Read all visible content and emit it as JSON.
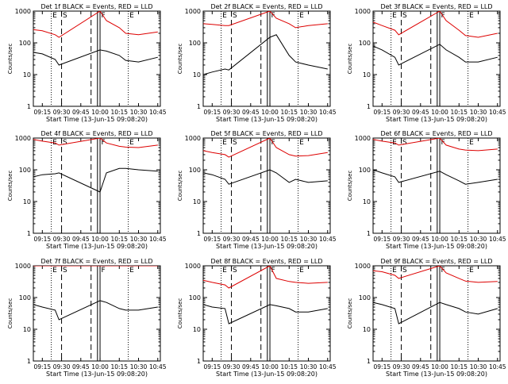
{
  "figure": {
    "ylabel": "Counts/sec",
    "xlabel": "Start Time (13-Jun-15 09:08:20)",
    "legend_title_suffix": "BLACK = Events, RED = LLD",
    "colors": {
      "events": "#000000",
      "lld": "#dd0000"
    },
    "marker_labels": {
      "eclipse_start": "E",
      "saa_start": "S",
      "flare": "F",
      "eclipse_end": "E"
    }
  },
  "chart_data": [
    {
      "type": "line",
      "title": "Det 1f  BLACK = Events, RED = LLD",
      "det": "1f",
      "x_ticks": [
        "09:15",
        "09:30",
        "09:45",
        "10:00",
        "10:15",
        "10:30",
        "10:45"
      ],
      "y_ticks": [
        "1",
        "10",
        "100",
        "1000"
      ],
      "yscale": "log",
      "ylim": [
        1,
        1000
      ],
      "series": [
        {
          "name": "Events",
          "color": "#000000",
          "x": [
            "09:08",
            "09:15",
            "09:25",
            "09:28",
            "10:00",
            "10:05",
            "10:15",
            "10:20",
            "10:30",
            "10:45"
          ],
          "y": [
            50,
            45,
            30,
            20,
            60,
            55,
            40,
            28,
            25,
            35
          ]
        },
        {
          "name": "LLD",
          "color": "#dd0000",
          "x": [
            "09:08",
            "09:15",
            "09:25",
            "09:28",
            "10:00",
            "10:05",
            "10:15",
            "10:20",
            "10:30",
            "10:45"
          ],
          "y": [
            260,
            240,
            180,
            150,
            1000,
            500,
            300,
            200,
            180,
            220
          ]
        }
      ]
    },
    {
      "type": "line",
      "title": "Det 2f  BLACK = Events, RED = LLD",
      "det": "2f",
      "x_ticks": [
        "09:15",
        "09:30",
        "09:45",
        "10:00",
        "10:15",
        "10:30",
        "10:45"
      ],
      "y_ticks": [
        "1",
        "10",
        "100",
        "1000"
      ],
      "yscale": "log",
      "ylim": [
        1,
        1000
      ],
      "series": [
        {
          "name": "Events",
          "color": "#000000",
          "x": [
            "09:08",
            "09:15",
            "09:25",
            "09:28",
            "10:00",
            "10:05",
            "10:15",
            "10:20",
            "10:30",
            "10:45"
          ],
          "y": [
            10,
            12,
            15,
            14,
            150,
            180,
            40,
            25,
            20,
            15
          ]
        },
        {
          "name": "LLD",
          "color": "#dd0000",
          "x": [
            "09:08",
            "09:15",
            "09:25",
            "09:28",
            "10:00",
            "10:05",
            "10:15",
            "10:20",
            "10:30",
            "10:45"
          ],
          "y": [
            400,
            380,
            350,
            350,
            1000,
            600,
            400,
            300,
            350,
            400
          ]
        }
      ]
    },
    {
      "type": "line",
      "title": "Det 3f  BLACK = Events, RED = LLD",
      "det": "3f",
      "x_ticks": [
        "09:15",
        "09:30",
        "09:45",
        "10:00",
        "10:15",
        "10:30",
        "10:45"
      ],
      "y_ticks": [
        "1",
        "10",
        "100",
        "1000"
      ],
      "yscale": "log",
      "ylim": [
        1,
        1000
      ],
      "series": [
        {
          "name": "Events",
          "color": "#000000",
          "x": [
            "09:08",
            "09:15",
            "09:25",
            "09:28",
            "10:00",
            "10:05",
            "10:15",
            "10:20",
            "10:30",
            "10:45"
          ],
          "y": [
            80,
            60,
            35,
            20,
            90,
            60,
            35,
            25,
            25,
            35
          ]
        },
        {
          "name": "LLD",
          "color": "#dd0000",
          "x": [
            "09:08",
            "09:15",
            "09:25",
            "09:28",
            "10:00",
            "10:05",
            "10:15",
            "10:20",
            "10:30",
            "10:45"
          ],
          "y": [
            450,
            350,
            250,
            180,
            1000,
            500,
            250,
            170,
            150,
            200
          ]
        }
      ]
    },
    {
      "type": "line",
      "title": "Det 4f  BLACK = Events, RED = LLD",
      "det": "4f",
      "x_ticks": [
        "09:15",
        "09:30",
        "09:45",
        "10:00",
        "10:15",
        "10:30",
        "10:45"
      ],
      "y_ticks": [
        "1",
        "10",
        "100",
        "1000"
      ],
      "yscale": "log",
      "ylim": [
        1,
        1000
      ],
      "series": [
        {
          "name": "Events",
          "color": "#000000",
          "x": [
            "09:08",
            "09:15",
            "09:25",
            "09:28",
            "10:00",
            "10:05",
            "10:15",
            "10:20",
            "10:30",
            "10:45"
          ],
          "y": [
            60,
            70,
            75,
            80,
            20,
            80,
            110,
            110,
            100,
            90
          ]
        },
        {
          "name": "LLD",
          "color": "#dd0000",
          "x": [
            "09:08",
            "09:15",
            "09:25",
            "09:28",
            "10:00",
            "10:05",
            "10:15",
            "10:20",
            "10:30",
            "10:45"
          ],
          "y": [
            900,
            800,
            700,
            600,
            1000,
            700,
            550,
            520,
            500,
            600
          ]
        }
      ]
    },
    {
      "type": "line",
      "title": "Det 5f  BLACK = Events, RED = LLD",
      "det": "5f",
      "x_ticks": [
        "09:15",
        "09:30",
        "09:45",
        "10:00",
        "10:15",
        "10:30",
        "10:45"
      ],
      "y_ticks": [
        "1",
        "10",
        "100",
        "1000"
      ],
      "yscale": "log",
      "ylim": [
        1,
        1000
      ],
      "series": [
        {
          "name": "Events",
          "color": "#000000",
          "x": [
            "09:08",
            "09:15",
            "09:25",
            "09:28",
            "10:00",
            "10:05",
            "10:15",
            "10:20",
            "10:30",
            "10:45"
          ],
          "y": [
            80,
            70,
            50,
            35,
            100,
            80,
            40,
            50,
            40,
            45
          ]
        },
        {
          "name": "LLD",
          "color": "#dd0000",
          "x": [
            "09:08",
            "09:15",
            "09:25",
            "09:28",
            "10:00",
            "10:05",
            "10:15",
            "10:20",
            "10:30",
            "10:45"
          ],
          "y": [
            400,
            350,
            300,
            250,
            1000,
            500,
            300,
            270,
            280,
            350
          ]
        }
      ]
    },
    {
      "type": "line",
      "title": "Det 6f  BLACK = Events, RED = LLD",
      "det": "6f",
      "x_ticks": [
        "09:15",
        "09:30",
        "09:45",
        "10:00",
        "10:15",
        "10:30",
        "10:45"
      ],
      "y_ticks": [
        "1",
        "10",
        "100",
        "1000"
      ],
      "yscale": "log",
      "ylim": [
        1,
        1000
      ],
      "series": [
        {
          "name": "Events",
          "color": "#000000",
          "x": [
            "09:08",
            "09:15",
            "09:25",
            "09:28",
            "10:00",
            "10:05",
            "10:15",
            "10:20",
            "10:30",
            "10:45"
          ],
          "y": [
            100,
            80,
            60,
            40,
            90,
            70,
            45,
            35,
            40,
            50
          ]
        },
        {
          "name": "LLD",
          "color": "#dd0000",
          "x": [
            "09:08",
            "09:15",
            "09:25",
            "09:28",
            "10:00",
            "10:05",
            "10:15",
            "10:20",
            "10:30",
            "10:45"
          ],
          "y": [
            900,
            800,
            700,
            600,
            1000,
            600,
            450,
            420,
            400,
            450
          ]
        }
      ]
    },
    {
      "type": "line",
      "title": "Det 7f  BLACK = Events, RED = LLD",
      "det": "7f",
      "x_ticks": [
        "09:15",
        "09:30",
        "09:45",
        "10:00",
        "10:15",
        "10:30",
        "10:45"
      ],
      "y_ticks": [
        "1",
        "10",
        "100",
        "1000"
      ],
      "yscale": "log",
      "ylim": [
        1,
        1000
      ],
      "series": [
        {
          "name": "Events",
          "color": "#000000",
          "x": [
            "09:08",
            "09:15",
            "09:25",
            "09:28",
            "10:00",
            "10:05",
            "10:15",
            "10:20",
            "10:30",
            "10:45"
          ],
          "y": [
            60,
            50,
            40,
            20,
            80,
            70,
            45,
            40,
            40,
            50
          ]
        },
        {
          "name": "LLD",
          "color": "#dd0000",
          "x": [
            "09:08",
            "09:15",
            "09:25",
            "09:28",
            "10:00",
            "10:05",
            "10:15",
            "10:20",
            "10:30",
            "10:45"
          ],
          "y": [
            1000,
            1000,
            1000,
            1000,
            1000,
            1000,
            1000,
            1000,
            1000,
            1000
          ]
        }
      ]
    },
    {
      "type": "line",
      "title": "Det 8f  BLACK = Events, RED = LLD",
      "det": "8f",
      "x_ticks": [
        "09:15",
        "09:30",
        "09:45",
        "10:00",
        "10:15",
        "10:30",
        "10:45"
      ],
      "y_ticks": [
        "1",
        "10",
        "100",
        "1000"
      ],
      "yscale": "log",
      "ylim": [
        1,
        1000
      ],
      "series": [
        {
          "name": "Events",
          "color": "#000000",
          "x": [
            "09:08",
            "09:15",
            "09:25",
            "09:28",
            "10:00",
            "10:05",
            "10:15",
            "10:20",
            "10:30",
            "10:45"
          ],
          "y": [
            60,
            50,
            45,
            15,
            60,
            55,
            45,
            35,
            35,
            45
          ]
        },
        {
          "name": "LLD",
          "color": "#dd0000",
          "x": [
            "09:08",
            "09:15",
            "09:25",
            "09:28",
            "10:00",
            "10:05",
            "10:15",
            "10:20",
            "10:30",
            "10:45"
          ],
          "y": [
            350,
            300,
            250,
            200,
            1000,
            400,
            320,
            300,
            280,
            300
          ]
        }
      ]
    },
    {
      "type": "line",
      "title": "Det 9f  BLACK = Events, RED = LLD",
      "det": "9f",
      "x_ticks": [
        "09:15",
        "09:30",
        "09:45",
        "10:00",
        "10:15",
        "10:30",
        "10:45"
      ],
      "y_ticks": [
        "1",
        "10",
        "100",
        "1000"
      ],
      "yscale": "log",
      "ylim": [
        1,
        1000
      ],
      "series": [
        {
          "name": "Events",
          "color": "#000000",
          "x": [
            "09:08",
            "09:15",
            "09:25",
            "09:28",
            "10:00",
            "10:05",
            "10:15",
            "10:20",
            "10:30",
            "10:45"
          ],
          "y": [
            70,
            60,
            45,
            15,
            70,
            60,
            45,
            35,
            30,
            45
          ]
        },
        {
          "name": "LLD",
          "color": "#dd0000",
          "x": [
            "09:08",
            "09:15",
            "09:25",
            "09:28",
            "10:00",
            "10:05",
            "10:15",
            "10:20",
            "10:30",
            "10:45"
          ],
          "y": [
            700,
            650,
            500,
            400,
            1000,
            600,
            400,
            330,
            300,
            320
          ]
        }
      ]
    }
  ],
  "markers": {
    "eclipse_start": "09:22",
    "saa_start": "09:30",
    "saa_end": "09:53",
    "flare_pair": [
      "09:58",
      "10:00"
    ],
    "eclipse_end": "10:22"
  }
}
